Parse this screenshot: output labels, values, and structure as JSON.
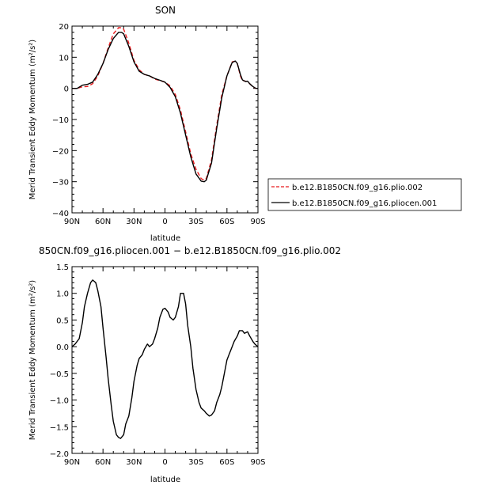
{
  "chart_data": [
    {
      "type": "line",
      "title": "SON",
      "xlabel": "latitude",
      "ylabel": "Merid Transient Eddy Momentum (m²/s²)",
      "xlim": [
        90,
        -90
      ],
      "ylim": [
        -40,
        20
      ],
      "x_ticks": [
        90,
        60,
        30,
        0,
        -30,
        -60,
        -90
      ],
      "x_tick_labels": [
        "90N",
        "60N",
        "30N",
        "0",
        "30S",
        "60S",
        "90S"
      ],
      "y_ticks": [
        -40,
        -30,
        -20,
        -10,
        0,
        10,
        20
      ],
      "y_tick_labels": [
        "−40",
        "−30",
        "−20",
        "−10",
        "0",
        "10",
        "20"
      ],
      "legend_position": "right",
      "series": [
        {
          "name": "b.e12.B1850CN.f09_g16.plio.002",
          "color": "#e8191c",
          "dash": "dashed",
          "x": [
            90,
            85,
            80,
            75,
            70,
            65,
            60,
            55,
            50,
            45,
            42,
            40,
            35,
            30,
            25,
            20,
            15,
            10,
            5,
            0,
            -5,
            -10,
            -15,
            -20,
            -25,
            -30,
            -35,
            -38,
            -40,
            -45,
            -50,
            -55,
            -60,
            -65,
            -68,
            -70,
            -73,
            -75,
            -78,
            -80,
            -82,
            -85,
            -88,
            -90
          ],
          "y": [
            0,
            0,
            0.5,
            0.6,
            1.5,
            4,
            8,
            13,
            17.5,
            19.5,
            19.5,
            19,
            14.5,
            9,
            6,
            4.5,
            4,
            3,
            2.5,
            2,
            0.8,
            -2,
            -7,
            -14,
            -21,
            -26,
            -29,
            -29.5,
            -29,
            -23,
            -12,
            -2,
            4,
            8.5,
            8.7,
            8,
            4,
            2.5,
            2.3,
            2.2,
            1.5,
            0.5,
            0,
            0
          ]
        },
        {
          "name": "b.e12.B1850CN.f09_g16.pliocen.001",
          "color": "#000000",
          "dash": "solid",
          "x": [
            90,
            85,
            80,
            75,
            70,
            65,
            60,
            55,
            50,
            45,
            42,
            40,
            35,
            30,
            25,
            20,
            15,
            10,
            5,
            0,
            -5,
            -10,
            -15,
            -20,
            -25,
            -30,
            -35,
            -38,
            -40,
            -45,
            -50,
            -55,
            -60,
            -65,
            -68,
            -70,
            -73,
            -75,
            -78,
            -80,
            -82,
            -85,
            -88,
            -90
          ],
          "y": [
            0,
            0,
            1,
            1.3,
            2,
            4.5,
            8,
            12.5,
            16,
            18,
            18,
            17.5,
            13.5,
            8.5,
            5.5,
            4.5,
            4,
            3.2,
            2.6,
            2,
            0.3,
            -2.7,
            -8,
            -15,
            -22,
            -27.5,
            -29.8,
            -30,
            -29.5,
            -24,
            -13,
            -3,
            4,
            8.3,
            8.8,
            8,
            4.5,
            2.7,
            2.2,
            2.3,
            1.5,
            0.6,
            0,
            0
          ]
        }
      ]
    },
    {
      "type": "line",
      "title": "850CN.f09_g16.pliocen.001 − b.e12.B1850CN.f09_g16.plio.002",
      "xlabel": "latitude",
      "ylabel": "Merid Transient Eddy Momentum (m²/s²)",
      "xlim": [
        90,
        -90
      ],
      "ylim": [
        -2.0,
        1.5
      ],
      "x_ticks": [
        90,
        60,
        30,
        0,
        -30,
        -60,
        -90
      ],
      "x_tick_labels": [
        "90N",
        "60N",
        "30N",
        "0",
        "30S",
        "60S",
        "90S"
      ],
      "y_ticks": [
        -2.0,
        -1.5,
        -1.0,
        -0.5,
        0.0,
        0.5,
        1.0,
        1.5
      ],
      "y_tick_labels": [
        "−2.0",
        "−1.5",
        "−1.0",
        "−0.5",
        "0.0",
        "0.5",
        "1.0",
        "1.5"
      ],
      "series": [
        {
          "color": "#000000",
          "dash": "solid",
          "x": [
            90,
            87,
            83,
            80,
            78,
            75,
            72,
            70,
            67,
            65,
            62,
            60,
            57,
            55,
            52,
            50,
            47,
            45,
            43,
            40,
            38,
            35,
            32,
            30,
            27,
            25,
            22,
            20,
            17,
            15,
            12,
            10,
            7,
            5,
            2,
            0,
            -3,
            -5,
            -8,
            -10,
            -13,
            -15,
            -18,
            -20,
            -22,
            -25,
            -27,
            -30,
            -33,
            -35,
            -38,
            -40,
            -43,
            -45,
            -48,
            -50,
            -53,
            -55,
            -58,
            -60,
            -62,
            -65,
            -67,
            -70,
            -72,
            -75,
            -77,
            -80,
            -82,
            -85,
            -87,
            -90
          ],
          "y": [
            0,
            0.05,
            0.15,
            0.45,
            0.75,
            1.0,
            1.2,
            1.25,
            1.2,
            1.05,
            0.75,
            0.35,
            -0.2,
            -0.6,
            -1.1,
            -1.4,
            -1.65,
            -1.7,
            -1.72,
            -1.65,
            -1.45,
            -1.3,
            -0.95,
            -0.65,
            -0.35,
            -0.22,
            -0.15,
            -0.05,
            0.05,
            0.0,
            0.05,
            0.15,
            0.35,
            0.55,
            0.7,
            0.72,
            0.65,
            0.55,
            0.5,
            0.55,
            0.75,
            1.0,
            1.0,
            0.8,
            0.4,
            0.0,
            -0.4,
            -0.8,
            -1.05,
            -1.15,
            -1.2,
            -1.25,
            -1.3,
            -1.28,
            -1.2,
            -1.05,
            -0.9,
            -0.75,
            -0.45,
            -0.25,
            -0.15,
            0.0,
            0.1,
            0.2,
            0.3,
            0.3,
            0.25,
            0.28,
            0.2,
            0.1,
            0.05,
            0.0
          ]
        }
      ]
    }
  ]
}
